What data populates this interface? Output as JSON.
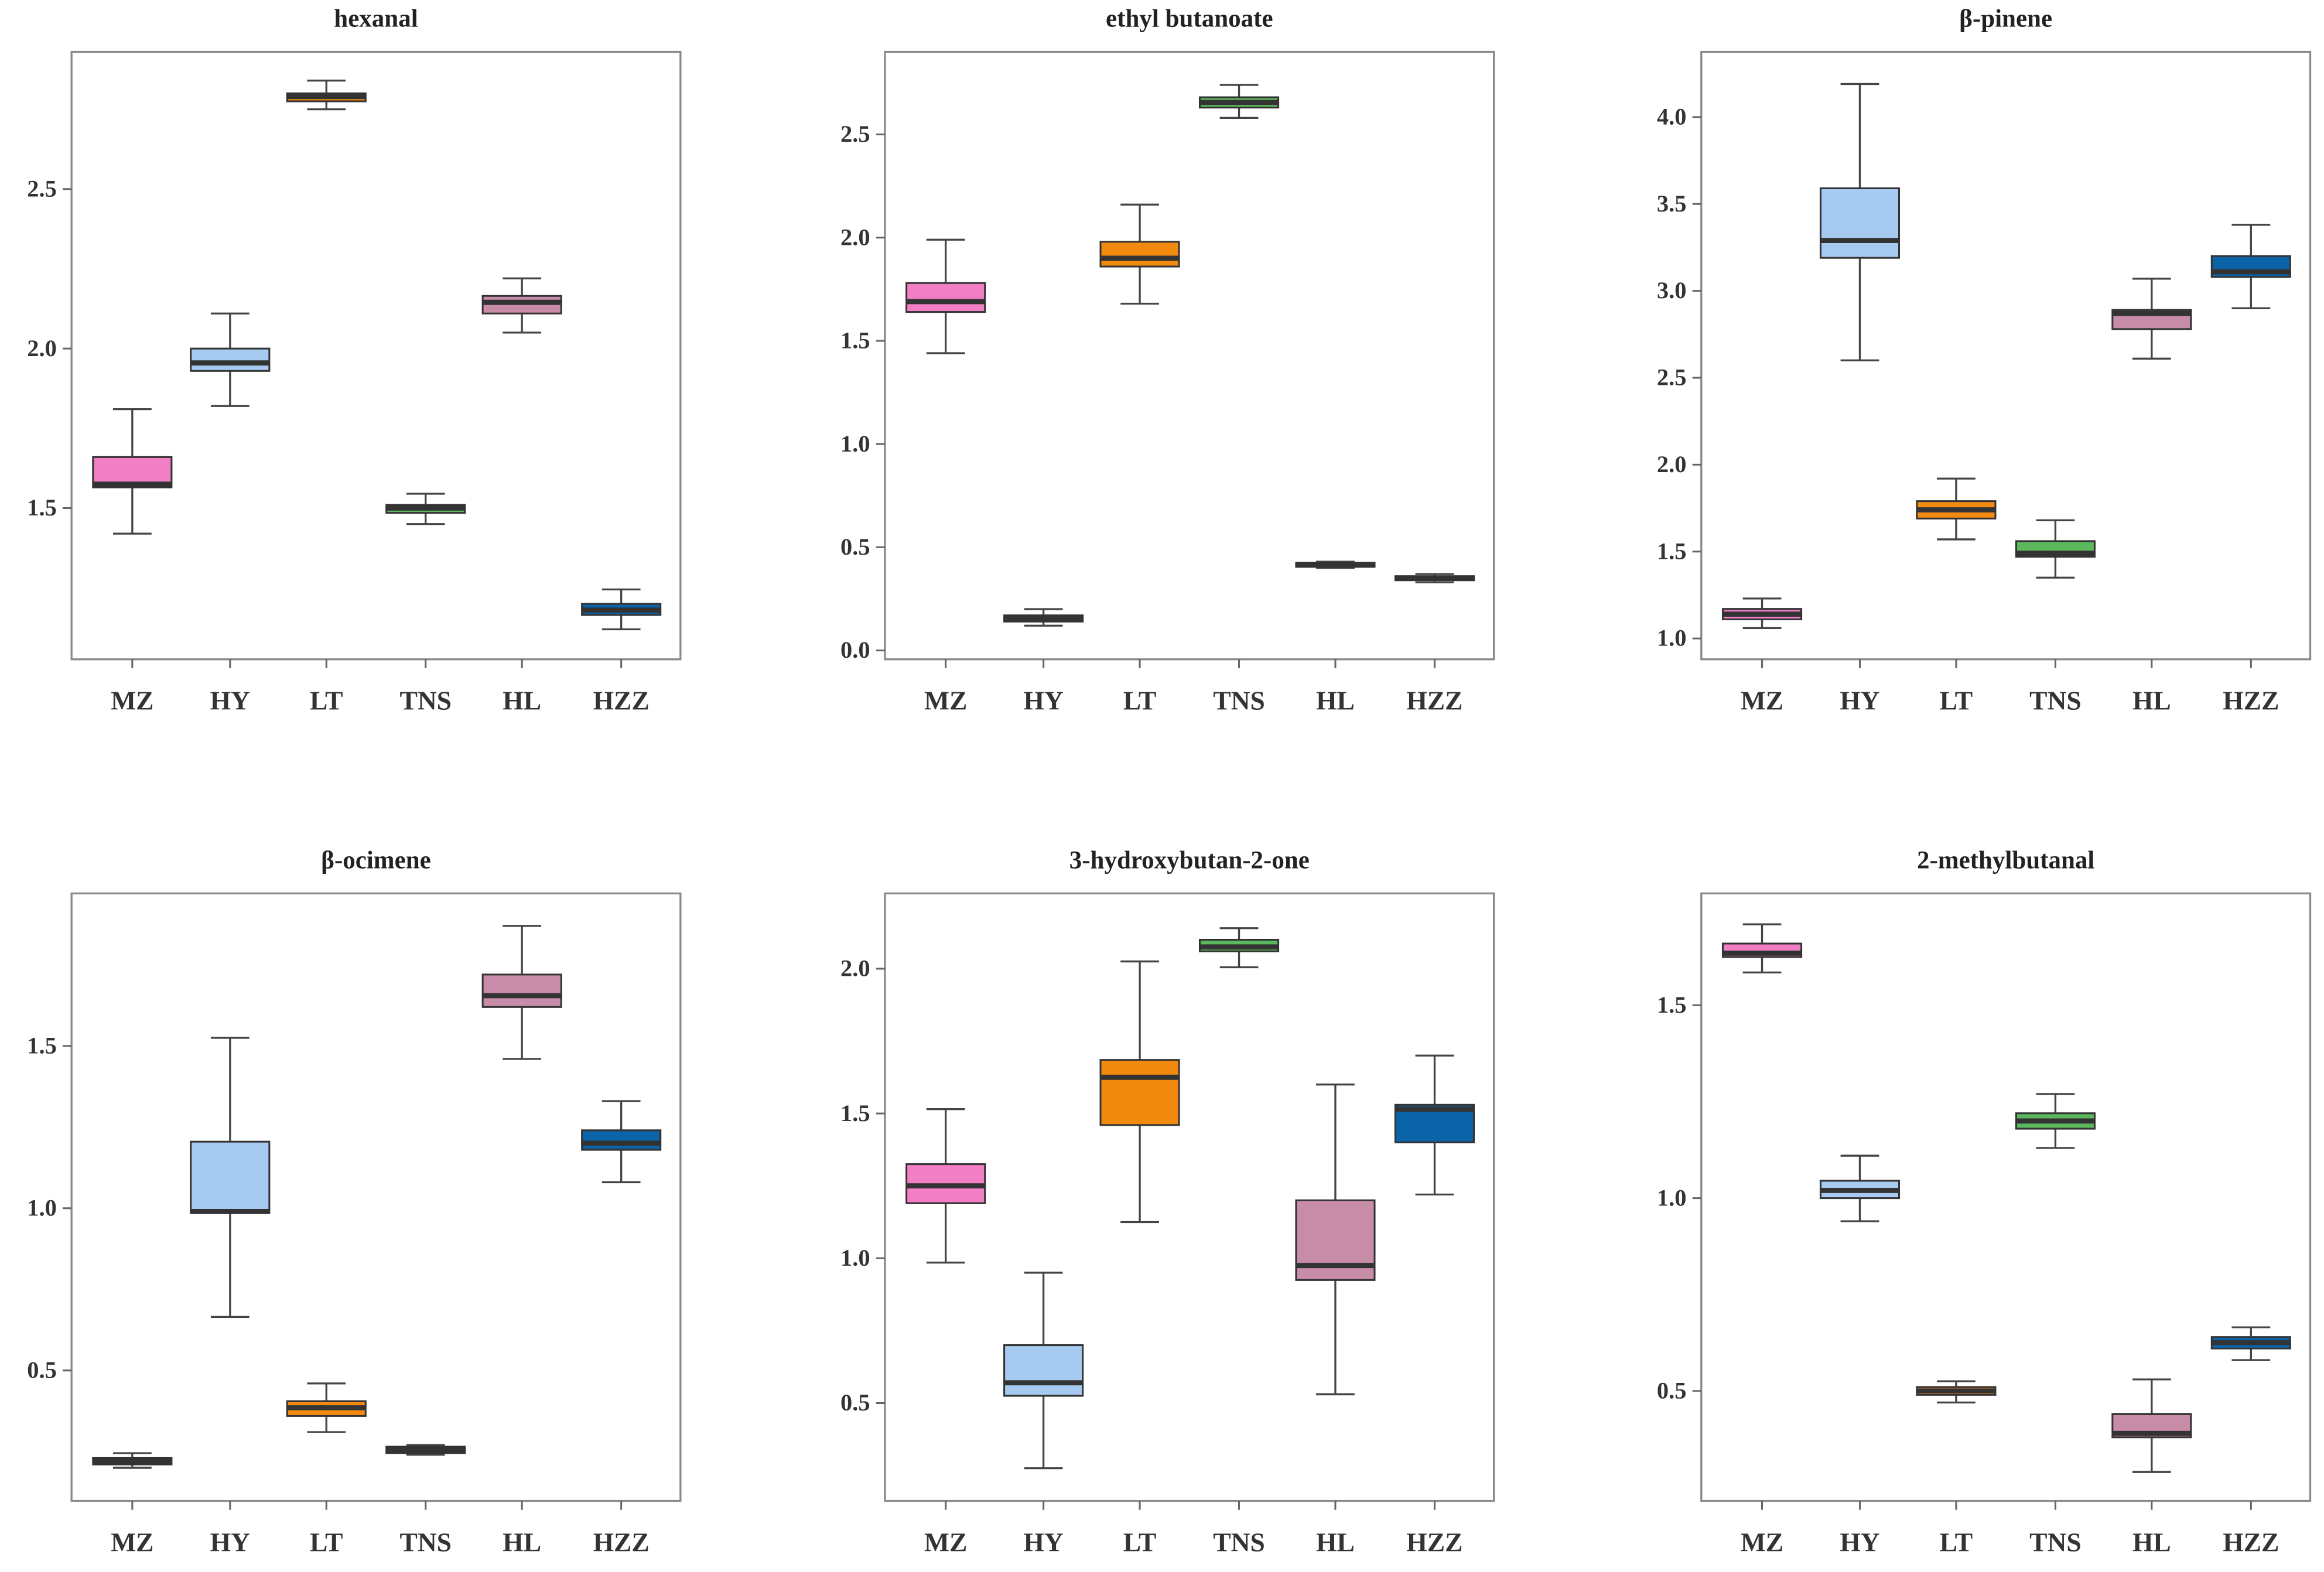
{
  "chart_data": [
    {
      "type": "box",
      "title": "hexanal",
      "categories": [
        "MZ",
        "HY",
        "LT",
        "TNS",
        "HL",
        "HZZ"
      ],
      "ylim": [
        1.026,
        2.93
      ],
      "yticks": [
        1.5,
        2.0,
        2.5
      ],
      "boxes": [
        {
          "whislo": 1.42,
          "q1": 1.565,
          "med": 1.575,
          "q3": 1.66,
          "whishi": 1.81
        },
        {
          "whislo": 1.82,
          "q1": 1.93,
          "med": 1.955,
          "q3": 2.0,
          "whishi": 2.11
        },
        {
          "whislo": 2.75,
          "q1": 2.775,
          "med": 2.79,
          "q3": 2.8,
          "whishi": 2.84
        },
        {
          "whislo": 1.45,
          "q1": 1.485,
          "med": 1.5,
          "q3": 1.51,
          "whishi": 1.545
        },
        {
          "whislo": 2.05,
          "q1": 2.11,
          "med": 2.145,
          "q3": 2.165,
          "whishi": 2.22
        },
        {
          "whislo": 1.12,
          "q1": 1.165,
          "med": 1.18,
          "q3": 1.2,
          "whishi": 1.245
        }
      ]
    },
    {
      "type": "box",
      "title": "ethyl butanoate",
      "categories": [
        "MZ",
        "HY",
        "LT",
        "TNS",
        "HL",
        "HZZ"
      ],
      "ylim": [
        -0.043,
        2.9
      ],
      "yticks": [
        0.0,
        0.5,
        1.0,
        1.5,
        2.0,
        2.5
      ],
      "boxes": [
        {
          "whislo": 1.44,
          "q1": 1.64,
          "med": 1.69,
          "q3": 1.78,
          "whishi": 1.99
        },
        {
          "whislo": 0.12,
          "q1": 0.14,
          "med": 0.155,
          "q3": 0.17,
          "whishi": 0.2
        },
        {
          "whislo": 1.68,
          "q1": 1.86,
          "med": 1.9,
          "q3": 1.98,
          "whishi": 2.16
        },
        {
          "whislo": 2.58,
          "q1": 2.63,
          "med": 2.655,
          "q3": 2.68,
          "whishi": 2.74
        },
        {
          "whislo": 0.4,
          "q1": 0.405,
          "med": 0.415,
          "q3": 0.425,
          "whishi": 0.43
        },
        {
          "whislo": 0.33,
          "q1": 0.34,
          "med": 0.35,
          "q3": 0.36,
          "whishi": 0.37
        }
      ]
    },
    {
      "type": "box",
      "title": "β-pinene",
      "categories": [
        "MZ",
        "HY",
        "LT",
        "TNS",
        "HL",
        "HZZ"
      ],
      "ylim": [
        0.88,
        4.375
      ],
      "yticks": [
        1.0,
        1.5,
        2.0,
        2.5,
        3.0,
        3.5,
        4.0
      ],
      "boxes": [
        {
          "whislo": 1.06,
          "q1": 1.11,
          "med": 1.14,
          "q3": 1.17,
          "whishi": 1.23
        },
        {
          "whislo": 2.6,
          "q1": 3.19,
          "med": 3.29,
          "q3": 3.59,
          "whishi": 4.19
        },
        {
          "whislo": 1.57,
          "q1": 1.69,
          "med": 1.74,
          "q3": 1.79,
          "whishi": 1.92
        },
        {
          "whislo": 1.35,
          "q1": 1.47,
          "med": 1.49,
          "q3": 1.56,
          "whishi": 1.68
        },
        {
          "whislo": 2.61,
          "q1": 2.78,
          "med": 2.87,
          "q3": 2.89,
          "whishi": 3.07
        },
        {
          "whislo": 2.9,
          "q1": 3.08,
          "med": 3.11,
          "q3": 3.2,
          "whishi": 3.38
        }
      ]
    },
    {
      "type": "box",
      "title": "β-ocimene",
      "categories": [
        "MZ",
        "HY",
        "LT",
        "TNS",
        "HL",
        "HZZ"
      ],
      "ylim": [
        0.098,
        1.97
      ],
      "yticks": [
        0.5,
        1.0,
        1.5
      ],
      "boxes": [
        {
          "whislo": 0.2,
          "q1": 0.21,
          "med": 0.22,
          "q3": 0.23,
          "whishi": 0.245
        },
        {
          "whislo": 0.665,
          "q1": 0.985,
          "med": 0.99,
          "q3": 1.205,
          "whishi": 1.525
        },
        {
          "whislo": 0.31,
          "q1": 0.36,
          "med": 0.385,
          "q3": 0.405,
          "whishi": 0.46
        },
        {
          "whislo": 0.24,
          "q1": 0.245,
          "med": 0.255,
          "q3": 0.265,
          "whishi": 0.27
        },
        {
          "whislo": 1.46,
          "q1": 1.62,
          "med": 1.655,
          "q3": 1.72,
          "whishi": 1.87
        },
        {
          "whislo": 1.08,
          "q1": 1.18,
          "med": 1.2,
          "q3": 1.24,
          "whishi": 1.33
        }
      ]
    },
    {
      "type": "box",
      "title": "3-hydroxybutan-2-one",
      "categories": [
        "MZ",
        "HY",
        "LT",
        "TNS",
        "HL",
        "HZZ"
      ],
      "ylim": [
        0.162,
        2.26
      ],
      "yticks": [
        0.5,
        1.0,
        1.5,
        2.0
      ],
      "boxes": [
        {
          "whislo": 0.985,
          "q1": 1.19,
          "med": 1.25,
          "q3": 1.325,
          "whishi": 1.515
        },
        {
          "whislo": 0.275,
          "q1": 0.525,
          "med": 0.57,
          "q3": 0.7,
          "whishi": 0.95
        },
        {
          "whislo": 1.125,
          "q1": 1.46,
          "med": 1.625,
          "q3": 1.685,
          "whishi": 2.025
        },
        {
          "whislo": 2.005,
          "q1": 2.06,
          "med": 2.075,
          "q3": 2.1,
          "whishi": 2.14
        },
        {
          "whislo": 0.53,
          "q1": 0.925,
          "med": 0.975,
          "q3": 1.2,
          "whishi": 1.6
        },
        {
          "whislo": 1.22,
          "q1": 1.4,
          "med": 1.515,
          "q3": 1.53,
          "whishi": 1.7
        }
      ]
    },
    {
      "type": "box",
      "title": "2-methylbutanal",
      "categories": [
        "MZ",
        "HY",
        "LT",
        "TNS",
        "HL",
        "HZZ"
      ],
      "ylim": [
        0.215,
        1.79
      ],
      "yticks": [
        0.5,
        1.0,
        1.5
      ],
      "boxes": [
        {
          "whislo": 1.585,
          "q1": 1.625,
          "med": 1.635,
          "q3": 1.66,
          "whishi": 1.71
        },
        {
          "whislo": 0.94,
          "q1": 1.0,
          "med": 1.02,
          "q3": 1.045,
          "whishi": 1.11
        },
        {
          "whislo": 0.47,
          "q1": 0.49,
          "med": 0.5,
          "q3": 0.51,
          "whishi": 0.525
        },
        {
          "whislo": 1.13,
          "q1": 1.18,
          "med": 1.2,
          "q3": 1.22,
          "whishi": 1.27
        },
        {
          "whislo": 0.29,
          "q1": 0.38,
          "med": 0.39,
          "q3": 0.44,
          "whishi": 0.53
        },
        {
          "whislo": 0.58,
          "q1": 0.61,
          "med": 0.625,
          "q3": 0.64,
          "whishi": 0.665
        }
      ]
    }
  ],
  "colors": {
    "MZ": "#f27fc6",
    "HY": "#a7cbf0",
    "LT": "#f38a10",
    "TNS": "#5cb85c",
    "HL": "#c88ca8",
    "HZZ": "#0b63a8",
    "median": "#333333",
    "whisker": "#444444"
  }
}
